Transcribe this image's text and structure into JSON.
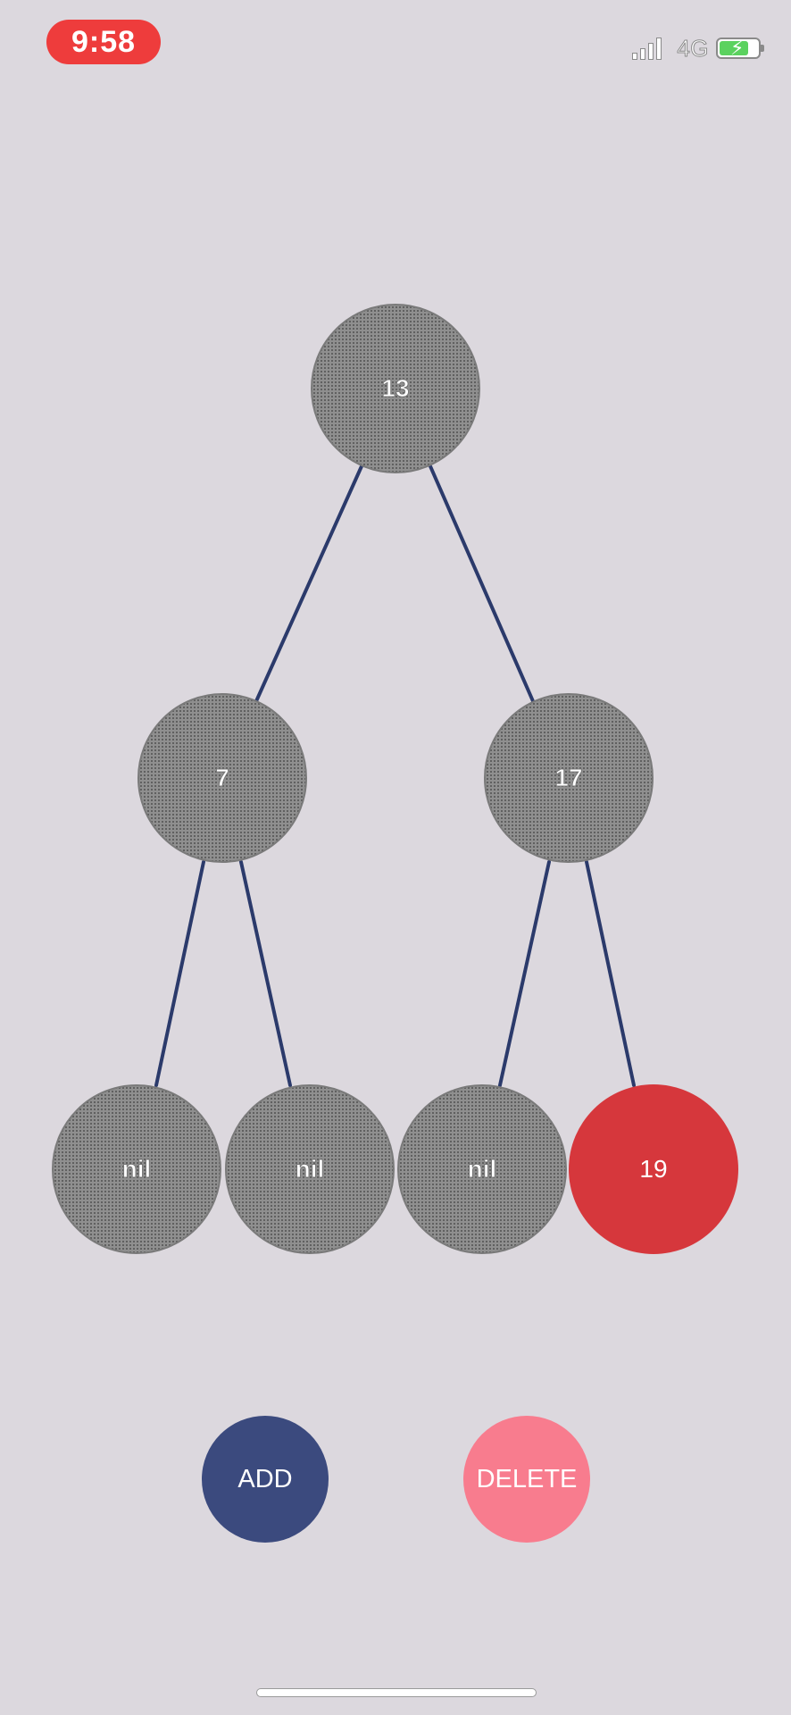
{
  "status_bar": {
    "time": "9:58",
    "network": "4G",
    "signal_icon": "signal-bars-icon",
    "battery_icon": "battery-charging-icon",
    "battery_color": "#5bd25f"
  },
  "tree": {
    "root": {
      "label": "13",
      "color": "black"
    },
    "level1": [
      {
        "label": "7",
        "color": "black"
      },
      {
        "label": "17",
        "color": "black"
      }
    ],
    "level2": [
      {
        "label": "nil",
        "color": "black"
      },
      {
        "label": "nil",
        "color": "black"
      },
      {
        "label": "nil",
        "color": "black"
      },
      {
        "label": "19",
        "color": "red"
      }
    ],
    "edge_color": "#2b3a6b",
    "red_node_color": "#d6373c",
    "black_node_color": "#8f8f8f"
  },
  "actions": {
    "add_label": "ADD",
    "delete_label": "DELETE",
    "add_color": "#3b4a7e",
    "delete_color": "#f87c8e"
  }
}
